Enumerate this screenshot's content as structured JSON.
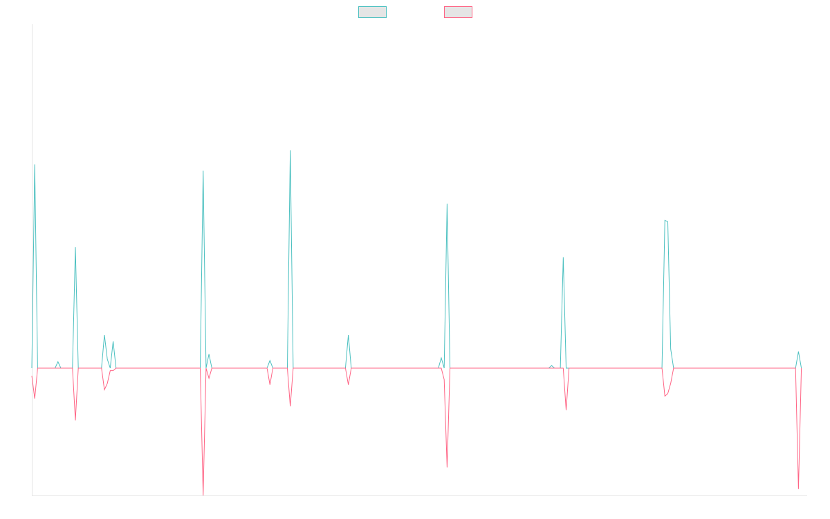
{
  "chart_data": {
    "type": "line",
    "title": "",
    "xlabel": "",
    "ylabel": "",
    "x_range": [
      0,
      267
    ],
    "ylim": [
      -1.0,
      2.7
    ],
    "grid": false,
    "legend_position": "top-center",
    "series": [
      {
        "color": "#4bc0c0",
        "fill": "#e5e5e5",
        "points": [
          [
            0,
            0
          ],
          [
            1,
            1.6
          ],
          [
            2,
            0
          ],
          [
            8,
            0
          ],
          [
            9,
            0.05
          ],
          [
            10,
            0
          ],
          [
            14,
            0
          ],
          [
            15,
            0.95
          ],
          [
            16,
            0
          ],
          [
            24,
            0
          ],
          [
            25,
            0.26
          ],
          [
            26,
            0.07
          ],
          [
            27,
            0
          ],
          [
            28,
            0.21
          ],
          [
            29,
            0
          ],
          [
            58,
            0
          ],
          [
            59,
            1.55
          ],
          [
            60,
            0
          ],
          [
            61,
            0.11
          ],
          [
            62,
            0
          ],
          [
            81,
            0
          ],
          [
            82,
            0.06
          ],
          [
            83,
            0
          ],
          [
            88,
            0
          ],
          [
            89,
            1.71
          ],
          [
            90,
            0
          ],
          [
            108,
            0
          ],
          [
            109,
            0.26
          ],
          [
            110,
            0
          ],
          [
            140,
            0
          ],
          [
            141,
            0.08
          ],
          [
            142,
            0
          ],
          [
            143,
            1.29
          ],
          [
            144,
            0
          ],
          [
            178,
            0
          ],
          [
            179,
            0.02
          ],
          [
            180,
            0
          ],
          [
            182,
            0
          ],
          [
            183,
            0.87
          ],
          [
            184,
            0
          ],
          [
            217,
            0
          ],
          [
            218,
            1.16
          ],
          [
            219,
            1.15
          ],
          [
            220,
            0.15
          ],
          [
            221,
            0
          ],
          [
            263,
            0
          ],
          [
            264,
            0.13
          ],
          [
            265,
            0
          ]
        ]
      },
      {
        "color": "#ff6384",
        "fill": "#e5e5e5",
        "points": [
          [
            0,
            -0.06
          ],
          [
            1,
            -0.24
          ],
          [
            2,
            0
          ],
          [
            14,
            0
          ],
          [
            15,
            -0.41
          ],
          [
            16,
            0
          ],
          [
            24,
            0
          ],
          [
            25,
            -0.17
          ],
          [
            26,
            -0.12
          ],
          [
            27,
            -0.02
          ],
          [
            28,
            -0.02
          ],
          [
            29,
            0
          ],
          [
            58,
            0
          ],
          [
            59,
            -1.0
          ],
          [
            60,
            0
          ],
          [
            61,
            -0.08
          ],
          [
            62,
            0
          ],
          [
            81,
            0
          ],
          [
            82,
            -0.13
          ],
          [
            83,
            0
          ],
          [
            88,
            0
          ],
          [
            89,
            -0.3
          ],
          [
            90,
            0
          ],
          [
            108,
            0
          ],
          [
            109,
            -0.13
          ],
          [
            110,
            0
          ],
          [
            141,
            0
          ],
          [
            142,
            -0.09
          ],
          [
            143,
            -0.78
          ],
          [
            144,
            0
          ],
          [
            183,
            0
          ],
          [
            184,
            -0.33
          ],
          [
            185,
            0
          ],
          [
            217,
            0
          ],
          [
            218,
            -0.22
          ],
          [
            219,
            -0.2
          ],
          [
            220,
            -0.12
          ],
          [
            221,
            0
          ],
          [
            263,
            0
          ],
          [
            264,
            -0.95
          ],
          [
            265,
            0
          ]
        ]
      }
    ]
  }
}
